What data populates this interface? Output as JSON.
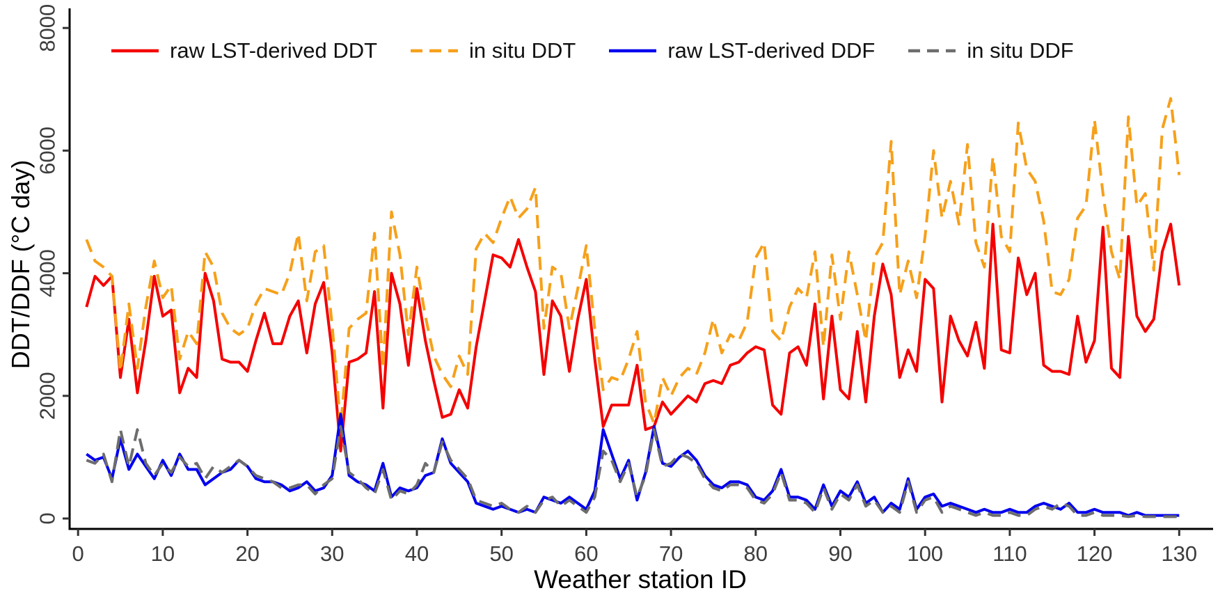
{
  "chart_data": {
    "type": "line",
    "title": "",
    "xlabel": "Weather station ID",
    "ylabel": "DDT/DDF (°C day)",
    "xlim": [
      -1,
      134
    ],
    "ylim": [
      -170,
      8320
    ],
    "xticks": [
      0,
      10,
      20,
      30,
      40,
      50,
      60,
      70,
      80,
      90,
      100,
      110,
      120,
      130
    ],
    "yticks": [
      0,
      2000,
      4000,
      6000,
      8000
    ],
    "grid": false,
    "legend_position": "top-inside",
    "x_start": 1,
    "x_step": 1,
    "n_points": 130,
    "series": [
      {
        "name": "raw LST-derived DDT",
        "color": "#f40000",
        "dash": "solid",
        "values": [
          3450,
          3950,
          3800,
          3950,
          2300,
          3250,
          2050,
          2900,
          3950,
          3300,
          3400,
          2050,
          2450,
          2300,
          4000,
          3550,
          2600,
          2550,
          2550,
          2400,
          2900,
          3350,
          2850,
          2850,
          3300,
          3550,
          2700,
          3500,
          3850,
          2700,
          1100,
          2550,
          2600,
          2700,
          3700,
          1800,
          4000,
          3500,
          2500,
          3750,
          2900,
          2250,
          1650,
          1700,
          2100,
          1800,
          2800,
          3550,
          4300,
          4250,
          4100,
          4550,
          4100,
          3700,
          2350,
          3550,
          3300,
          2400,
          3250,
          3900,
          2600,
          1500,
          1850,
          1850,
          1850,
          2500,
          1450,
          1500,
          1900,
          1700,
          1850,
          2000,
          1900,
          2200,
          2250,
          2200,
          2500,
          2550,
          2700,
          2800,
          2750,
          1850,
          1700,
          2700,
          2800,
          2500,
          3500,
          1950,
          3300,
          2100,
          1950,
          3050,
          1900,
          3300,
          4150,
          3650,
          2300,
          2750,
          2400,
          3900,
          3750,
          1900,
          3300,
          2900,
          2650,
          3200,
          2450,
          4800,
          2750,
          2700,
          4250,
          3650,
          4000,
          2500,
          2400,
          2400,
          2350,
          3300,
          2550,
          2900,
          4750,
          2450,
          2300,
          4600,
          3300,
          3050,
          3250,
          4350,
          4800,
          3800
        ]
      },
      {
        "name": "in situ DDT",
        "color": "#f6a01a",
        "dash": "dashed",
        "values": [
          4550,
          4200,
          4100,
          3950,
          2400,
          3500,
          2450,
          3450,
          4200,
          3600,
          3800,
          2600,
          3050,
          2850,
          4350,
          4100,
          3350,
          3100,
          3000,
          3100,
          3500,
          3750,
          3700,
          3650,
          4000,
          4650,
          3550,
          4350,
          4450,
          3150,
          1500,
          3100,
          3250,
          3350,
          4650,
          2450,
          5000,
          4300,
          3000,
          4100,
          3300,
          2650,
          2350,
          2150,
          2650,
          2350,
          4400,
          4650,
          4500,
          4900,
          5250,
          4900,
          5050,
          5400,
          3100,
          4100,
          4000,
          3100,
          3750,
          4450,
          3100,
          2100,
          2300,
          2250,
          2600,
          3050,
          1900,
          1550,
          2300,
          2000,
          2300,
          2450,
          2350,
          2700,
          3250,
          2700,
          3000,
          2900,
          3200,
          4250,
          4500,
          3050,
          2900,
          3450,
          3750,
          3600,
          4350,
          2800,
          4300,
          3250,
          4350,
          3650,
          2900,
          4250,
          4500,
          6150,
          3650,
          4200,
          3600,
          4600,
          6000,
          4900,
          5500,
          4800,
          6100,
          4500,
          4100,
          5900,
          4600,
          4350,
          6450,
          5700,
          5500,
          4850,
          3700,
          3650,
          3900,
          4900,
          5100,
          6500,
          5300,
          4350,
          3900,
          6550,
          5100,
          5300,
          4050,
          6350,
          6850,
          5600
        ]
      },
      {
        "name": "raw LST-derived DDF",
        "color": "#0000ee",
        "dash": "solid",
        "values": [
          1050,
          950,
          1000,
          650,
          1300,
          800,
          1050,
          850,
          650,
          950,
          700,
          1050,
          800,
          800,
          550,
          650,
          750,
          800,
          950,
          850,
          650,
          600,
          600,
          550,
          450,
          500,
          600,
          450,
          500,
          700,
          1700,
          700,
          600,
          550,
          450,
          900,
          350,
          500,
          450,
          500,
          700,
          750,
          1300,
          900,
          750,
          600,
          250,
          200,
          150,
          200,
          150,
          100,
          150,
          100,
          350,
          300,
          250,
          350,
          250,
          150,
          450,
          1450,
          1050,
          650,
          950,
          300,
          750,
          1500,
          900,
          850,
          1000,
          1100,
          950,
          700,
          550,
          500,
          600,
          600,
          550,
          350,
          300,
          450,
          800,
          350,
          350,
          300,
          150,
          550,
          200,
          450,
          350,
          600,
          250,
          350,
          100,
          250,
          150,
          650,
          150,
          350,
          400,
          200,
          250,
          200,
          150,
          100,
          150,
          100,
          100,
          150,
          100,
          100,
          200,
          250,
          200,
          150,
          250,
          100,
          100,
          150,
          100,
          100,
          100,
          50,
          100,
          50,
          50,
          50,
          50,
          50
        ]
      },
      {
        "name": "in situ DDF",
        "color": "#6d6d6d",
        "dash": "dashed",
        "values": [
          950,
          900,
          1050,
          600,
          1450,
          850,
          1450,
          900,
          700,
          900,
          750,
          1000,
          850,
          900,
          650,
          850,
          750,
          850,
          950,
          850,
          700,
          650,
          600,
          500,
          500,
          550,
          550,
          400,
          550,
          650,
          1500,
          750,
          650,
          500,
          400,
          800,
          300,
          450,
          400,
          550,
          900,
          750,
          1250,
          950,
          800,
          650,
          300,
          250,
          200,
          250,
          150,
          100,
          200,
          100,
          300,
          350,
          200,
          300,
          200,
          100,
          350,
          1100,
          950,
          600,
          900,
          350,
          700,
          1450,
          850,
          900,
          1050,
          1000,
          900,
          650,
          500,
          450,
          550,
          550,
          500,
          300,
          250,
          400,
          750,
          300,
          300,
          250,
          100,
          500,
          150,
          400,
          300,
          550,
          200,
          300,
          100,
          200,
          100,
          600,
          100,
          300,
          350,
          100,
          200,
          150,
          100,
          50,
          100,
          50,
          50,
          100,
          50,
          50,
          150,
          200,
          150,
          250,
          200,
          50,
          50,
          100,
          50,
          50,
          50,
          30,
          50,
          30,
          30,
          30,
          30,
          30
        ]
      }
    ]
  }
}
